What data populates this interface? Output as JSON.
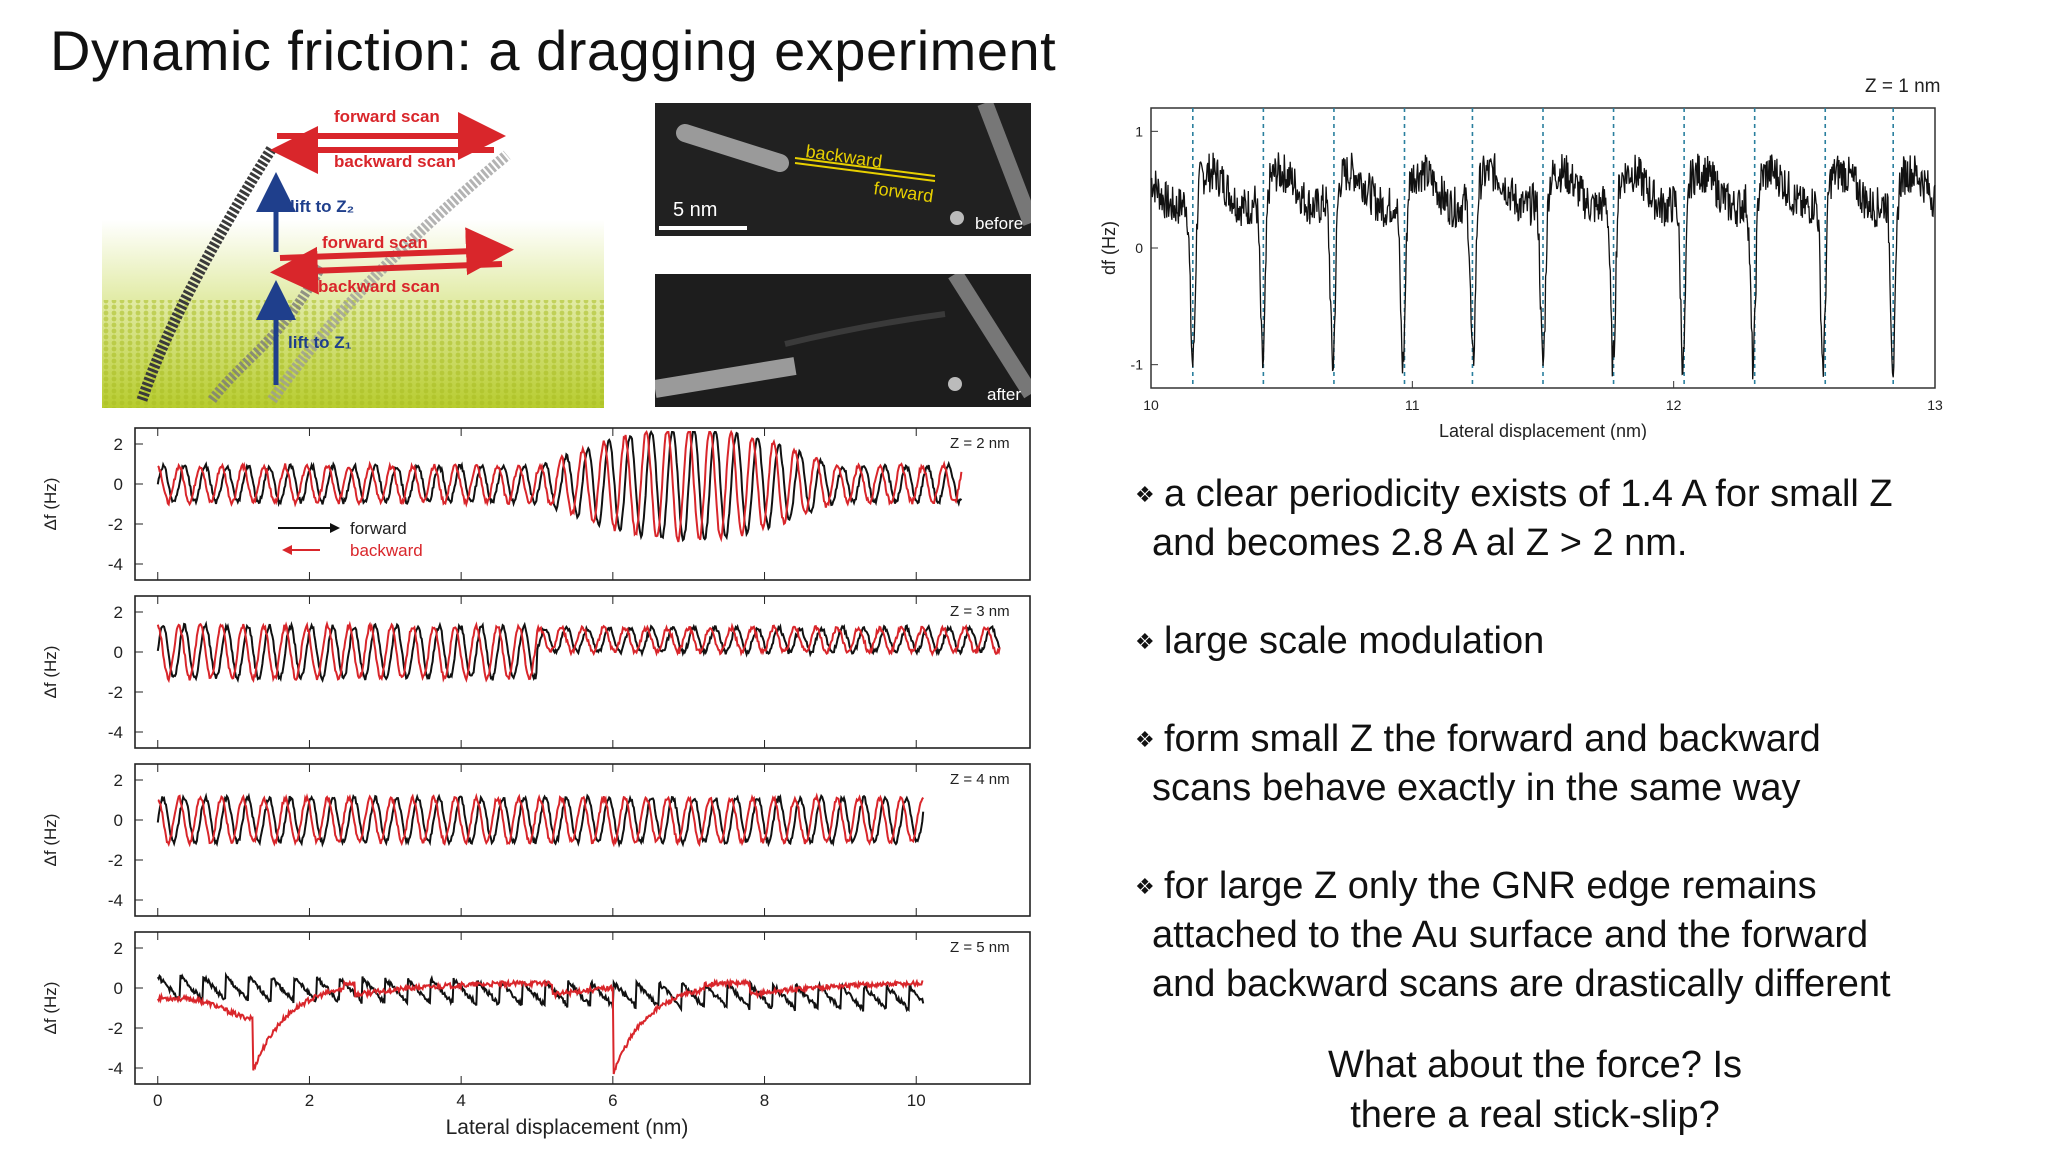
{
  "slide": {
    "title": "Dynamic friction: a dragging experiment",
    "bullets": [
      {
        "l1": "a clear periodicity exists of 1.4 A for small Z",
        "l2": "and becomes 2.8 A al Z > 2 nm."
      },
      {
        "l1": "large scale modulation",
        "l2": ""
      },
      {
        "l1": "form small Z the forward and backward",
        "l2": "scans behave exactly in the same way"
      },
      {
        "l1": "for large Z only the GNR edge remains",
        "l2": "attached to the Au surface and the forward",
        "l3": "and backward scans are drastically different"
      }
    ],
    "question": {
      "line1": "What about the force? Is",
      "line2": "there a real stick-slip?"
    },
    "bullet_symbol": "❖"
  },
  "schematic": {
    "labels": {
      "forward_top": "forward scan",
      "backward_top": "backward scan",
      "lift_z2": "lift to Z₂",
      "forward_mid": "forward scan",
      "backward_mid": "backward scan",
      "lift_z1": "lift to Z₁"
    },
    "colors": {
      "arrow_red": "#d9262b",
      "arrow_blue": "#1f3f8c",
      "label_red": "#d9262b",
      "label_blue": "#1f3f8c",
      "surface": "#c6d83a"
    }
  },
  "stm_images": {
    "before": {
      "label": "before",
      "scale_bar": "5 nm",
      "backward": "backward",
      "forward": "forward"
    },
    "after": {
      "label": "after"
    }
  },
  "chart_data": [
    {
      "type": "line",
      "title": "Z = 1 nm",
      "xlabel": "Lateral displacement (nm)",
      "ylabel": "df (Hz)",
      "xlim": [
        10,
        13
      ],
      "ylim": [
        -1.2,
        1.2
      ],
      "x_ticks": [
        "10",
        "11",
        "12",
        "13"
      ],
      "y_ticks": [
        "1",
        "0",
        "-1"
      ],
      "dashed_marker_x": [
        10.16,
        10.43,
        10.7,
        10.97,
        11.23,
        11.5,
        11.77,
        12.04,
        12.31,
        12.58,
        12.84
      ],
      "series": [
        {
          "color": "#111111",
          "period_nm": 0.268,
          "mean": 0.5,
          "min_dip": -1.0
        }
      ]
    },
    {
      "type": "line",
      "panel": "Z = 2 nm",
      "ylabel": "Δf (Hz)",
      "xlim": [
        -0.3,
        11.5
      ],
      "ylim": [
        -4.8,
        2.8
      ],
      "y_ticks": [
        "2",
        "0",
        "-2",
        "-4"
      ],
      "legend": {
        "forward": "forward",
        "backward": "backward"
      },
      "series": [
        {
          "name": "forward",
          "color": "#111111",
          "x_end": 10.6,
          "period_nm": 0.28
        },
        {
          "name": "backward",
          "color": "#d9262b",
          "x_end": 10.6,
          "period_nm": 0.28
        }
      ]
    },
    {
      "type": "line",
      "panel": "Z = 3 nm",
      "ylabel": "Δf (Hz)",
      "xlim": [
        -0.3,
        11.5
      ],
      "ylim": [
        -4.8,
        2.8
      ],
      "y_ticks": [
        "2",
        "0",
        "-2",
        "-4"
      ],
      "series": [
        {
          "name": "forward",
          "color": "#111111",
          "x_end": 11.1,
          "period_nm": 0.28
        },
        {
          "name": "backward",
          "color": "#d9262b",
          "x_end": 11.1,
          "period_nm": 0.28
        }
      ]
    },
    {
      "type": "line",
      "panel": "Z = 4 nm",
      "ylabel": "Δf (Hz)",
      "xlim": [
        -0.3,
        11.5
      ],
      "ylim": [
        -4.8,
        2.8
      ],
      "y_ticks": [
        "2",
        "0",
        "-2",
        "-4"
      ],
      "series": [
        {
          "name": "forward",
          "color": "#111111",
          "x_end": 10.1,
          "period_nm": 0.28
        },
        {
          "name": "backward",
          "color": "#d9262b",
          "x_end": 10.1,
          "period_nm": 0.28
        }
      ]
    },
    {
      "type": "line",
      "panel": "Z = 5 nm",
      "ylabel": "Δf (Hz)",
      "xlabel": "Lateral displacement (nm)",
      "xlim": [
        -0.3,
        11.5
      ],
      "ylim": [
        -4.8,
        2.8
      ],
      "x_ticks": [
        "0",
        "2",
        "4",
        "6",
        "8",
        "10"
      ],
      "y_ticks": [
        "2",
        "0",
        "-2",
        "-4"
      ],
      "series": [
        {
          "name": "forward",
          "color": "#111111",
          "x_end": 10.1,
          "period_nm": 0.3
        },
        {
          "name": "backward",
          "color": "#d9262b",
          "x_end": 10.1,
          "dips_x": [
            1.25,
            6.0
          ]
        }
      ]
    }
  ]
}
